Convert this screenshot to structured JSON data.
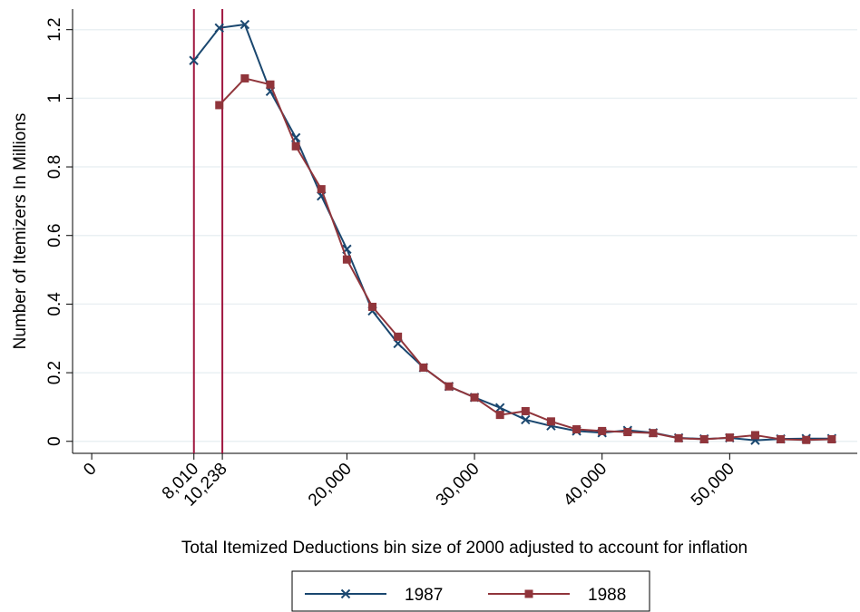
{
  "chart_data": {
    "type": "line",
    "x_label": "Total Itemized Deductions bin size of 2000 adjusted to account for inflation",
    "y_label": "Number of Itemizers In Millions",
    "series": [
      {
        "name": "1987",
        "color": "#1a476f",
        "marker": "x",
        "x": [
          8000,
          10000,
          12000,
          14000,
          16000,
          18000,
          20000,
          22000,
          24000,
          26000,
          28000,
          30000,
          32000,
          34000,
          36000,
          38000,
          40000,
          42000,
          44000,
          46000,
          48000,
          50000,
          52000,
          54000,
          56000,
          58000
        ],
        "values": [
          1.11,
          1.205,
          1.215,
          1.02,
          0.885,
          0.715,
          0.56,
          0.38,
          0.285,
          0.215,
          0.16,
          0.128,
          0.098,
          0.063,
          0.045,
          0.03,
          0.025,
          0.032,
          0.025,
          0.01,
          0.007,
          0.01,
          0.003,
          0.007,
          0.008,
          0.008
        ]
      },
      {
        "name": "1988",
        "color": "#90353b",
        "marker": "square",
        "x": [
          10000,
          12000,
          14000,
          16000,
          18000,
          20000,
          22000,
          24000,
          26000,
          28000,
          30000,
          32000,
          34000,
          36000,
          38000,
          40000,
          42000,
          44000,
          46000,
          48000,
          50000,
          52000,
          54000,
          56000,
          58000
        ],
        "values": [
          0.98,
          1.058,
          1.04,
          0.86,
          0.735,
          0.53,
          0.392,
          0.305,
          0.215,
          0.16,
          0.128,
          0.077,
          0.088,
          0.058,
          0.035,
          0.03,
          0.027,
          0.024,
          0.009,
          0.006,
          0.011,
          0.018,
          0.006,
          0.004,
          0.006
        ]
      }
    ],
    "reference_lines": {
      "x": [
        8010,
        10238
      ],
      "color": "#a0173f"
    },
    "xlim": [
      -1500,
      60000
    ],
    "xticks": [
      0,
      {
        "value": 8010,
        "label": "8,010"
      },
      {
        "value": 10238,
        "label": "10,238"
      },
      {
        "value": 20000,
        "label": "20,000"
      },
      {
        "value": 30000,
        "label": "30,000"
      },
      {
        "value": 40000,
        "label": "40,000"
      },
      {
        "value": 50000,
        "label": "50,000"
      }
    ],
    "ylim": [
      -0.035,
      1.26
    ],
    "yticks": [
      0,
      0.2,
      0.4,
      0.6,
      0.8,
      1,
      1.2
    ],
    "grid": true
  }
}
